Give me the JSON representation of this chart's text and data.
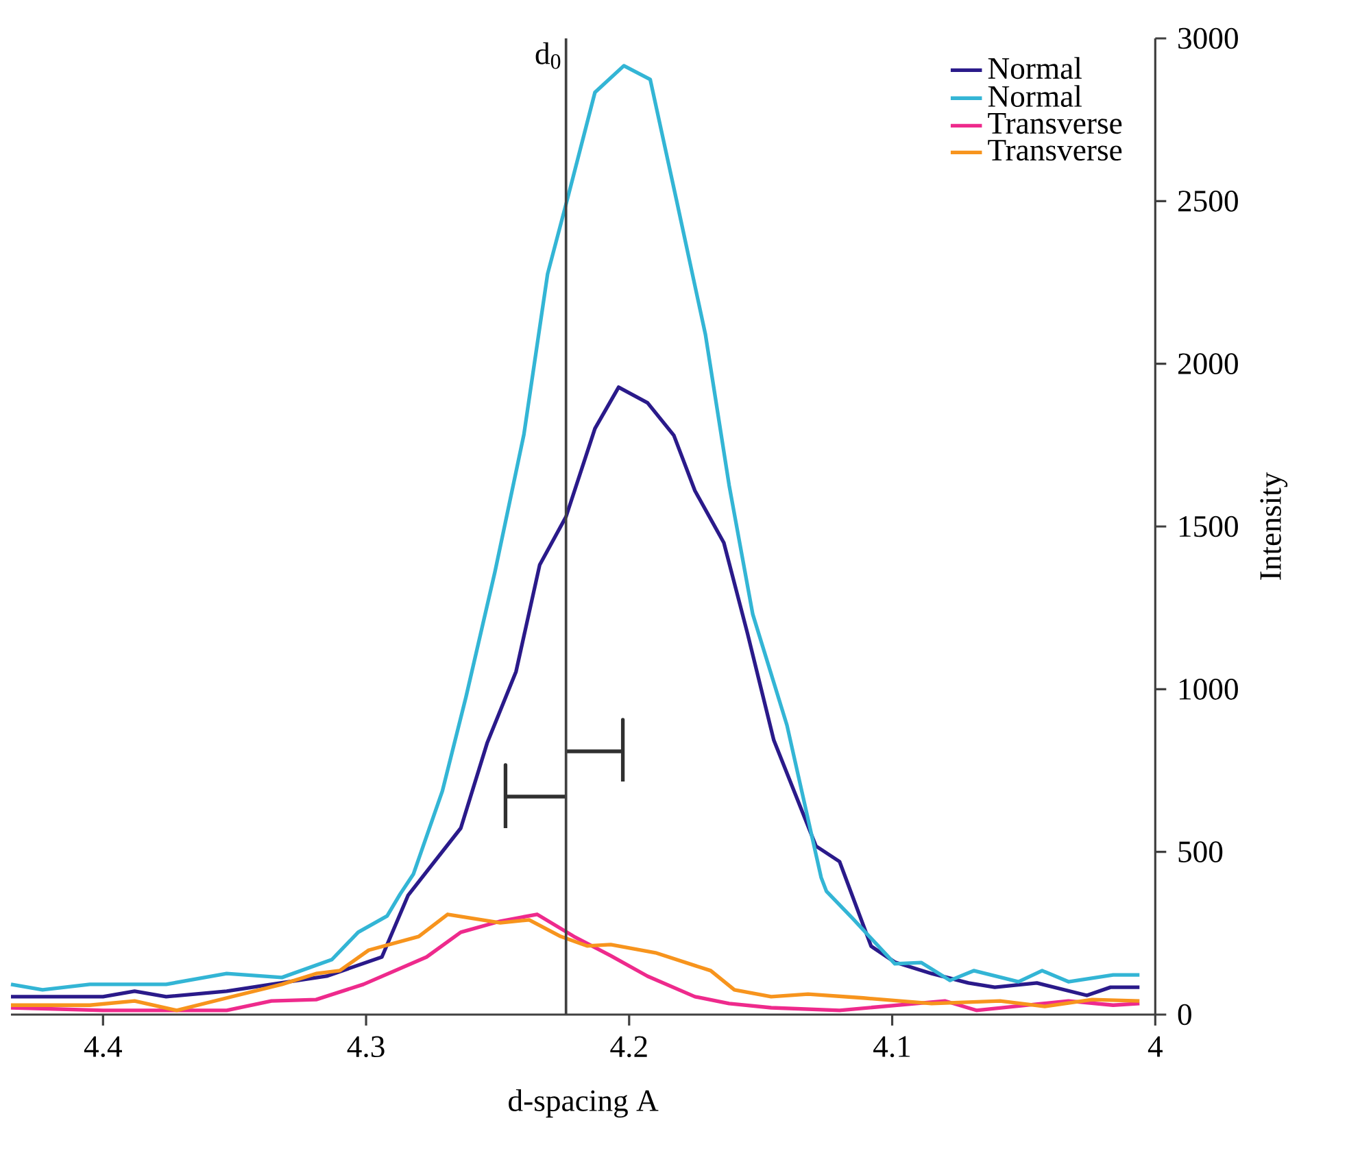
{
  "chart_data": {
    "type": "line",
    "xlabel": "d-spacing A",
    "ylabel": "Intensity",
    "xlim": [
      4.435,
      4.0
    ],
    "ylim": [
      0,
      3000
    ],
    "xticks": [
      4.4,
      4.3,
      4.2,
      4.1,
      4
    ],
    "yticks": [
      0,
      500,
      1000,
      1500,
      2000,
      2500,
      3000
    ],
    "legend": "top right",
    "marker": "none",
    "line_style": "solid",
    "series": [
      {
        "name": "Normal",
        "color": "#2a1a8a",
        "x": [
          4.435,
          4.4,
          4.388,
          4.376,
          4.353,
          4.336,
          4.315,
          4.294,
          4.284,
          4.264,
          4.254,
          4.243,
          4.234,
          4.224,
          4.213,
          4.204,
          4.193,
          4.183,
          4.175,
          4.164,
          4.155,
          4.145,
          4.129,
          4.12,
          4.108,
          4.099,
          4.085,
          4.071,
          4.061,
          4.045,
          4.026,
          4.017,
          4.006
        ],
        "values": [
          55,
          55,
          72,
          55,
          72,
          93,
          118,
          177,
          367,
          573,
          834,
          1054,
          1382,
          1530,
          1801,
          1928,
          1880,
          1780,
          1610,
          1450,
          1171,
          843,
          518,
          470,
          210,
          161,
          126,
          97,
          84,
          97,
          59,
          84,
          84
        ]
      },
      {
        "name": "Normal",
        "color": "#33b5d5",
        "x": [
          4.435,
          4.423,
          4.405,
          4.376,
          4.353,
          4.332,
          4.313,
          4.303,
          4.292,
          4.287,
          4.282,
          4.271,
          4.262,
          4.251,
          4.24,
          4.231,
          4.223,
          4.213,
          4.202,
          4.192,
          4.182,
          4.171,
          4.162,
          4.153,
          4.14,
          4.127,
          4.125,
          4.115,
          4.099,
          4.089,
          4.078,
          4.069,
          4.052,
          4.043,
          4.033,
          4.016,
          4.006
        ],
        "values": [
          93,
          76,
          93,
          93,
          126,
          114,
          169,
          253,
          303,
          371,
          432,
          687,
          977,
          1361,
          1783,
          2276,
          2521,
          2834,
          2916,
          2874,
          2503,
          2090,
          1627,
          1230,
          889,
          421,
          379,
          295,
          156,
          160,
          105,
          135,
          101,
          135,
          101,
          122,
          122
        ]
      },
      {
        "name": "Transverse",
        "color": "#ee2a8c",
        "x": [
          4.435,
          4.4,
          4.353,
          4.336,
          4.319,
          4.301,
          4.277,
          4.264,
          4.249,
          4.235,
          4.221,
          4.207,
          4.193,
          4.175,
          4.162,
          4.146,
          4.12,
          4.08,
          4.068,
          4.033,
          4.016,
          4.006
        ],
        "values": [
          21,
          13,
          13,
          42,
          46,
          93,
          177,
          253,
          287,
          308,
          240,
          181,
          118,
          55,
          34,
          21,
          13,
          42,
          13,
          42,
          29,
          34
        ]
      },
      {
        "name": "Transverse",
        "color": "#f7941d",
        "x": [
          4.435,
          4.405,
          4.388,
          4.372,
          4.353,
          4.332,
          4.319,
          4.31,
          4.299,
          4.28,
          4.269,
          4.249,
          4.238,
          4.226,
          4.216,
          4.207,
          4.19,
          4.169,
          4.16,
          4.146,
          4.132,
          4.111,
          4.085,
          4.059,
          4.042,
          4.024,
          4.006
        ],
        "values": [
          29,
          29,
          42,
          13,
          51,
          93,
          126,
          135,
          198,
          240,
          308,
          282,
          291,
          240,
          211,
          215,
          190,
          135,
          76,
          55,
          63,
          51,
          34,
          42,
          25,
          46,
          42
        ]
      },
      {
        "color": "#303030",
        "x": [
          4.224,
          4.2024,
          4.2024,
          4.2024
        ],
        "values": [
          809,
          809,
          906,
          716
        ]
      },
      {
        "color": "#303030",
        "x": [
          4.224,
          4.247,
          4.247,
          4.247
        ],
        "values": [
          670,
          670,
          767,
          573
        ]
      }
    ],
    "ref_lines": [
      {
        "axis": "x",
        "value": 4.224,
        "label": "d$_{0}$",
        "color": "#404040"
      }
    ]
  }
}
